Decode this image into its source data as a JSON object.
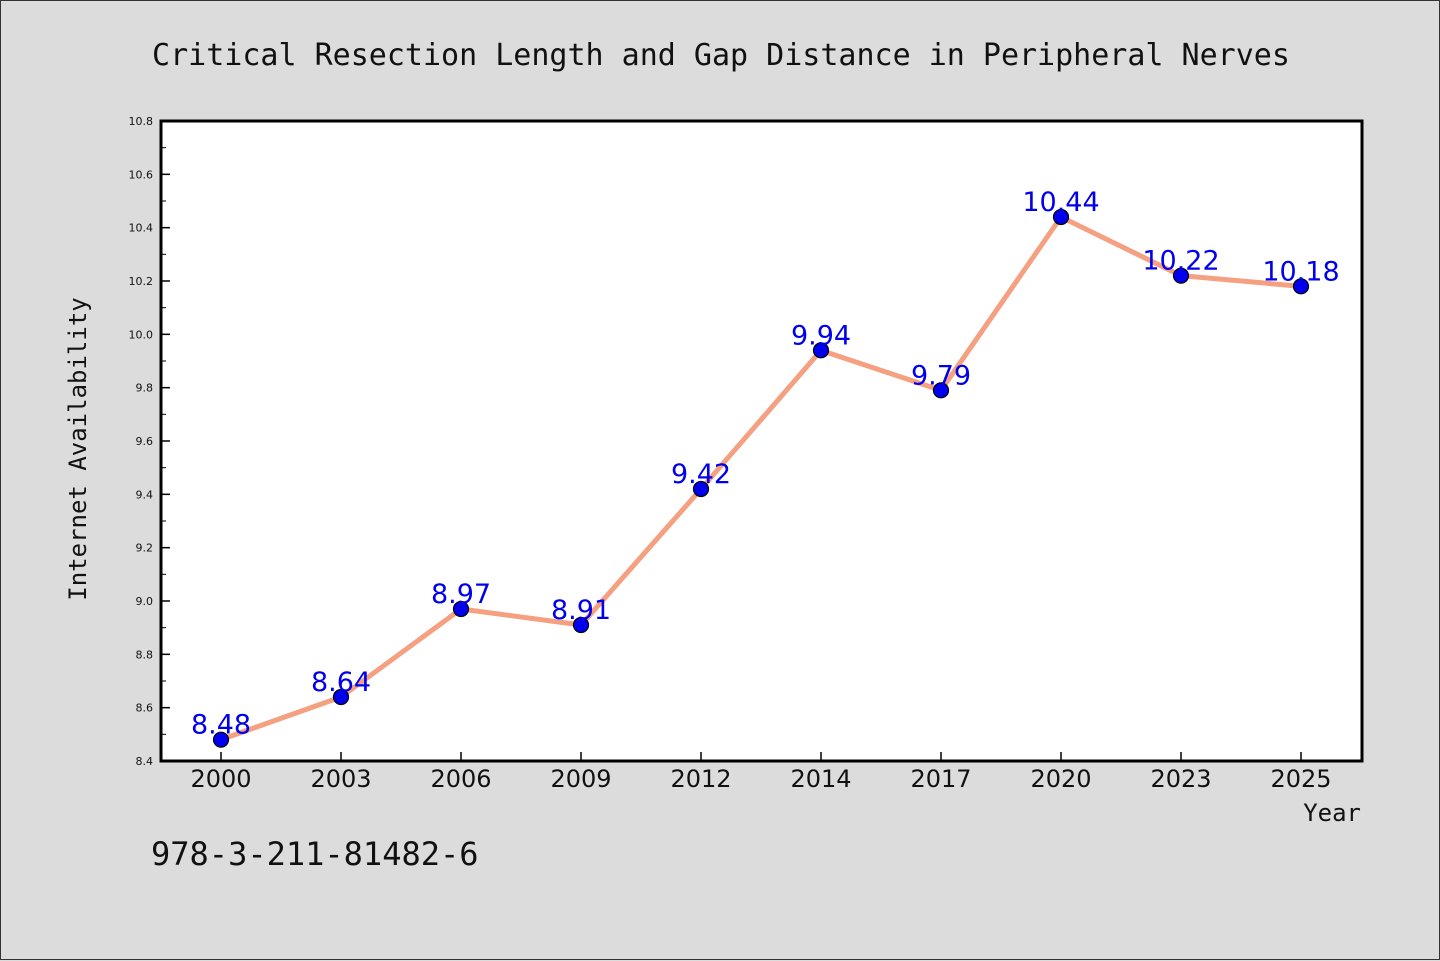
{
  "chart_data": {
    "type": "line",
    "title": "Critical Resection Length and Gap Distance in Peripheral Nerves",
    "xlabel": "Year",
    "ylabel": "Internet Availability",
    "categories": [
      "2000",
      "2003",
      "2006",
      "2009",
      "2012",
      "2014",
      "2017",
      "2020",
      "2023",
      "2025"
    ],
    "series": [
      {
        "values": [
          8.48,
          8.64,
          8.97,
          8.91,
          9.42,
          9.94,
          9.79,
          10.44,
          10.22,
          10.18
        ],
        "data_labels": [
          "8.48",
          "8.64",
          "8.97",
          "8.91",
          "9.42",
          "9.94",
          "9.79",
          "10.44",
          "10.22",
          "10.18"
        ]
      }
    ],
    "ylim": [
      8.4,
      10.8
    ],
    "yticks": [
      "8.4",
      "8.6",
      "8.8",
      "9.0",
      "9.2",
      "9.4",
      "9.6",
      "9.8",
      "10.0",
      "10.2",
      "10.4",
      "10.6",
      "10.8"
    ],
    "grid": false,
    "line_color": "#f4a081",
    "marker_color": "#0000ee",
    "label_color": "#0000ee",
    "plot_background": "#ffffff",
    "page_background": "#dcdcdc"
  },
  "footer_text": "978-3-211-81482-6"
}
